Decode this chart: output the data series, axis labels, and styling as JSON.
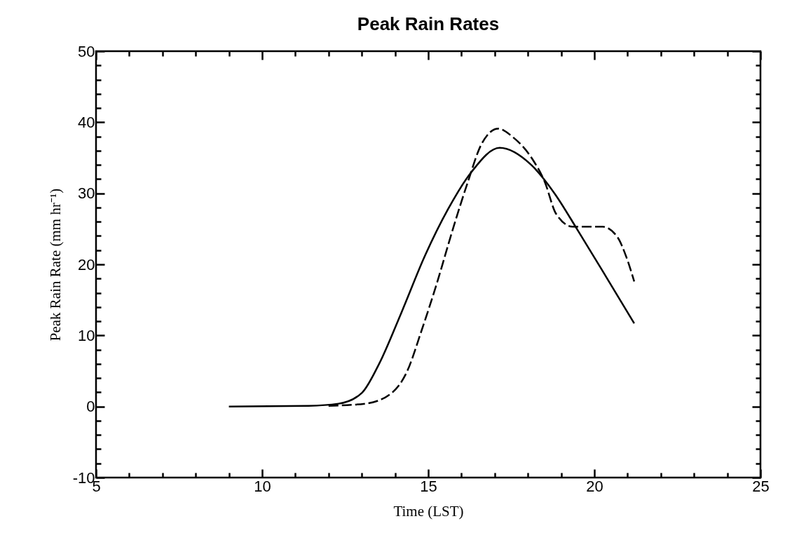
{
  "chart_data": {
    "type": "line",
    "title": "Peak Rain Rates",
    "xlabel": "Time (LST)",
    "ylabel": "Peak Rain Rate (mm hr⁻¹)",
    "xlim": [
      5,
      25
    ],
    "ylim": [
      -10,
      50
    ],
    "xticks": [
      5,
      {
        "value": 6,
        "label": null
      },
      {
        "value": 7,
        "label": null
      },
      {
        "value": 8,
        "label": null
      },
      {
        "value": 9,
        "label": null
      },
      10,
      {
        "value": 11,
        "label": null
      },
      {
        "value": 12,
        "label": null
      },
      {
        "value": 13,
        "label": null
      },
      {
        "value": 14,
        "label": null
      },
      15,
      {
        "value": 16,
        "label": null
      },
      {
        "value": 17,
        "label": null
      },
      {
        "value": 18,
        "label": null
      },
      {
        "value": 19,
        "label": null
      },
      20,
      {
        "value": 21,
        "label": null
      },
      {
        "value": 22,
        "label": null
      },
      {
        "value": 23,
        "label": null
      },
      {
        "value": 24,
        "label": null
      },
      25
    ],
    "yticks": [
      -10,
      {
        "value": -8,
        "label": null
      },
      {
        "value": -6,
        "label": null
      },
      {
        "value": -4,
        "label": null
      },
      {
        "value": -2,
        "label": null
      },
      0,
      {
        "value": 2,
        "label": null
      },
      {
        "value": 4,
        "label": null
      },
      {
        "value": 6,
        "label": null
      },
      {
        "value": 8,
        "label": null
      },
      10,
      {
        "value": 12,
        "label": null
      },
      {
        "value": 14,
        "label": null
      },
      {
        "value": 16,
        "label": null
      },
      {
        "value": 18,
        "label": null
      },
      20,
      {
        "value": 22,
        "label": null
      },
      {
        "value": 24,
        "label": null
      },
      {
        "value": 26,
        "label": null
      },
      {
        "value": 28,
        "label": null
      },
      30,
      {
        "value": 32,
        "label": null
      },
      {
        "value": 34,
        "label": null
      },
      {
        "value": 36,
        "label": null
      },
      {
        "value": 38,
        "label": null
      },
      40,
      {
        "value": 42,
        "label": null
      },
      {
        "value": 44,
        "label": null
      },
      {
        "value": 46,
        "label": null
      },
      {
        "value": 48,
        "label": null
      },
      50
    ],
    "series": [
      {
        "color": "#000000",
        "line_style": "solid",
        "x": [
          9,
          11.4,
          12.3,
          13.0,
          13.5,
          14.2,
          14.9,
          15.6,
          16.3,
          17.15,
          18.1,
          18.8,
          19.5,
          20.4,
          21.2
        ],
        "values": [
          0,
          0.1,
          0.4,
          1.9,
          5.8,
          13.3,
          21.2,
          27.8,
          33,
          36.4,
          34,
          30,
          24.8,
          17.9,
          11.7
        ]
      },
      {
        "color": "#000000",
        "line_style": "dashed",
        "x": [
          12.0,
          13.1,
          13.9,
          14.35,
          14.8,
          15.25,
          15.75,
          16.2,
          16.6,
          17.1,
          17.55,
          18.15,
          18.5,
          18.85,
          19.35,
          20.25,
          20.7,
          20.95,
          21.2
        ],
        "values": [
          0.1,
          0.4,
          1.9,
          4.8,
          10.7,
          17.2,
          25.1,
          31.7,
          36.9,
          39.1,
          37.9,
          34.7,
          31.7,
          27.1,
          25.3,
          25.3,
          23.8,
          21.2,
          17.6
        ]
      }
    ]
  }
}
